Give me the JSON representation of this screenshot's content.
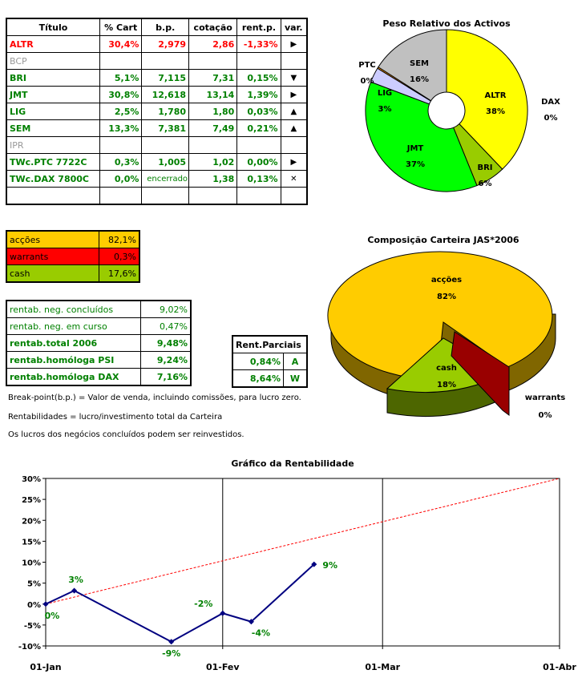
{
  "holdings": {
    "headers": [
      "Título",
      "% Cart",
      "b.p.",
      "cotação",
      "rent.p.",
      "var."
    ],
    "rows": [
      {
        "name": "ALTR",
        "cart": "30,4%",
        "bp": "2,979",
        "cot": "2,86",
        "rent": "-1,33%",
        "var": "▶",
        "style": "red"
      },
      {
        "name": "BCP",
        "cart": "",
        "bp": "",
        "cot": "",
        "rent": "",
        "var": "",
        "style": "gry"
      },
      {
        "name": "BRI",
        "cart": "5,1%",
        "bp": "7,115",
        "cot": "7,31",
        "rent": "0,15%",
        "var": "▼",
        "style": "grn"
      },
      {
        "name": "JMT",
        "cart": "30,8%",
        "bp": "12,618",
        "cot": "13,14",
        "rent": "1,39%",
        "var": "▶",
        "style": "grn"
      },
      {
        "name": "LIG",
        "cart": "2,5%",
        "bp": "1,780",
        "cot": "1,80",
        "rent": "0,03%",
        "var": "▲",
        "style": "grn"
      },
      {
        "name": "SEM",
        "cart": "13,3%",
        "bp": "7,381",
        "cot": "7,49",
        "rent": "0,21%",
        "var": "▲",
        "style": "grn"
      },
      {
        "name": "IPR",
        "cart": "",
        "bp": "",
        "cot": "",
        "rent": "",
        "var": "",
        "style": "gry"
      },
      {
        "name": "TWc.PTC 7722C",
        "cart": "0,3%",
        "bp": "1,005",
        "cot": "1,02",
        "rent": "0,00%",
        "var": "▶",
        "style": "grn"
      },
      {
        "name": "TWc.DAX 7800C",
        "cart": "0,0%",
        "bp": "encerrado",
        "cot": "1,38",
        "rent": "0,13%",
        "var": "✕",
        "style": "grn"
      },
      {
        "name": "",
        "cart": "",
        "bp": "",
        "cot": "",
        "rent": "",
        "var": "",
        "style": ""
      }
    ]
  },
  "allocation": [
    {
      "label": "acções",
      "value": "82,1%",
      "color": "#FFCC00"
    },
    {
      "label": "warrants",
      "value": "0,3%",
      "color": "#FF0000"
    },
    {
      "label": "cash",
      "value": "17,6%",
      "color": "#99CC00"
    }
  ],
  "returns": [
    {
      "label": "rentab. neg. concluídos",
      "value": "9,02%",
      "bold": false
    },
    {
      "label": "rentab. neg. em curso",
      "value": "0,47%",
      "bold": false
    },
    {
      "label": "rentab.total 2006",
      "value": "9,48%",
      "bold": true
    },
    {
      "label": "rentab.homóloga PSI",
      "value": "9,24%",
      "bold": true
    },
    {
      "label": "rentab.homóloga DAX",
      "value": "7,16%",
      "bold": true
    }
  ],
  "partials": {
    "title": "Rent.Parciais",
    "rows": [
      {
        "value": "0,84%",
        "tag": "A"
      },
      {
        "value": "8,64%",
        "tag": "W"
      }
    ]
  },
  "notes": [
    "Break-point(b.p.) = Valor de venda, incluindo comissões, para lucro zero.",
    "Rentabilidades = lucro/investimento total da Carteira",
    "Os lucros dos negócios concluídos podem ser reinvestidos."
  ],
  "chart_data": [
    {
      "type": "pie",
      "title": "Peso Relativo dos Activos",
      "donut": true,
      "slices": [
        {
          "name": "ALTR",
          "value": 38,
          "label": "38%",
          "color": "#FFFF00"
        },
        {
          "name": "BRI",
          "value": 6,
          "label": "6%",
          "color": "#99CC00"
        },
        {
          "name": "JMT",
          "value": 37,
          "label": "37%",
          "color": "#00FF00"
        },
        {
          "name": "LIG",
          "value": 3,
          "label": "3%",
          "color": "#CCCCFF"
        },
        {
          "name": "PTC",
          "value": 0.3,
          "label": "0%",
          "color": "#FF9900"
        },
        {
          "name": "SEM",
          "value": 16,
          "label": "16%",
          "color": "#C0C0C0"
        },
        {
          "name": "DAX",
          "value": 0,
          "label": "0%",
          "color": "#000000"
        }
      ]
    },
    {
      "type": "pie",
      "title": "Composição Carteira JAS*2006",
      "three_d": true,
      "slices": [
        {
          "name": "acções",
          "value": 82,
          "label": "82%",
          "color": "#FFCC00"
        },
        {
          "name": "cash",
          "value": 18,
          "label": "18%",
          "color": "#99CC00"
        },
        {
          "name": "warrants",
          "value": 0.3,
          "label": "0%",
          "color": "#990000"
        }
      ]
    },
    {
      "type": "line",
      "title": "Gráfico da Rentabilidade",
      "ylim": [
        -10,
        30
      ],
      "yticks": [
        "-10%",
        "-5%",
        "0%",
        "5%",
        "10%",
        "15%",
        "20%",
        "25%",
        "30%"
      ],
      "xticks": [
        "01-Jan",
        "01-Fev",
        "01-Mar",
        "01-Abr"
      ],
      "series": [
        {
          "x": [
            "2006-01-01",
            "2006-01-06",
            "2006-01-23",
            "2006-02-01",
            "2006-02-06",
            "2006-02-17"
          ],
          "y": [
            0,
            3.2,
            -9,
            -2.2,
            -4.2,
            9.5
          ],
          "labels": [
            "0%",
            "3%",
            "-9%",
            "-2%",
            "-4%",
            "9%"
          ],
          "color": "#000080"
        },
        {
          "x": [
            "2006-01-01",
            "2006-04-01"
          ],
          "y": [
            0,
            30
          ],
          "color": "#FF0000",
          "dashed": true
        }
      ],
      "grid": "vertical at month ticks"
    }
  ]
}
